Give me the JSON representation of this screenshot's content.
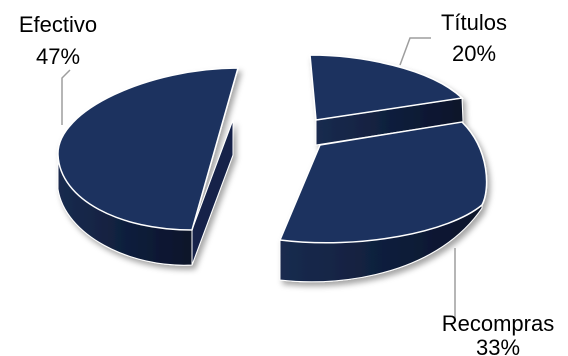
{
  "chart_data": {
    "type": "pie",
    "style": "3d-exploded",
    "categories": [
      "Títulos",
      "Recompras",
      "Efectivo"
    ],
    "values": [
      20,
      33,
      47
    ],
    "value_labels": [
      "20%",
      "33%",
      "47%"
    ],
    "colors": [
      "#1c335e",
      "#1c335e",
      "#1c335e"
    ],
    "side_color": "#0f1e3b",
    "leader_line_color": "#9e9e9e",
    "title": "",
    "legend": "none"
  }
}
